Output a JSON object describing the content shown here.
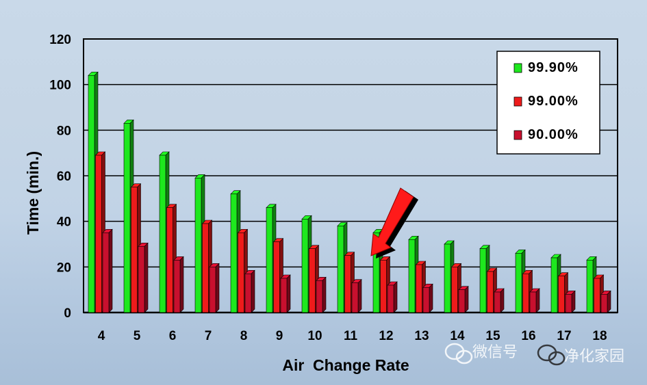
{
  "chart_data": {
    "type": "bar",
    "categories": [
      "4",
      "5",
      "6",
      "7",
      "8",
      "9",
      "10",
      "11",
      "12",
      "13",
      "14",
      "15",
      "16",
      "17",
      "18"
    ],
    "series": [
      {
        "name": "99.90%",
        "color": "#1ee81e",
        "values": [
          104,
          83,
          69,
          59,
          52,
          46,
          41,
          38,
          35,
          32,
          30,
          28,
          26,
          24,
          23
        ]
      },
      {
        "name": "99.00%",
        "color": "#ee1b1b",
        "values": [
          69,
          55,
          46,
          39,
          35,
          31,
          28,
          25,
          23,
          21,
          20,
          18,
          17,
          16,
          15
        ]
      },
      {
        "name": "90.00%",
        "color": "#c8102e",
        "values": [
          35,
          29,
          23,
          20,
          17,
          15,
          14,
          13,
          12,
          11,
          10,
          9,
          9,
          8,
          8
        ]
      }
    ],
    "xlabel": "Air  Change Rate",
    "ylabel": "Time (min.)",
    "ylim": [
      0,
      120
    ],
    "yticks": [
      "0",
      "20",
      "40",
      "60",
      "80",
      "100",
      "120"
    ],
    "grid": true,
    "legend_position": "top-right",
    "annotation": "arrow-pointing-to-12"
  },
  "watermark": {
    "text_left": "微信号",
    "text_right": "净化家园",
    "icon": "wechat-icon"
  }
}
